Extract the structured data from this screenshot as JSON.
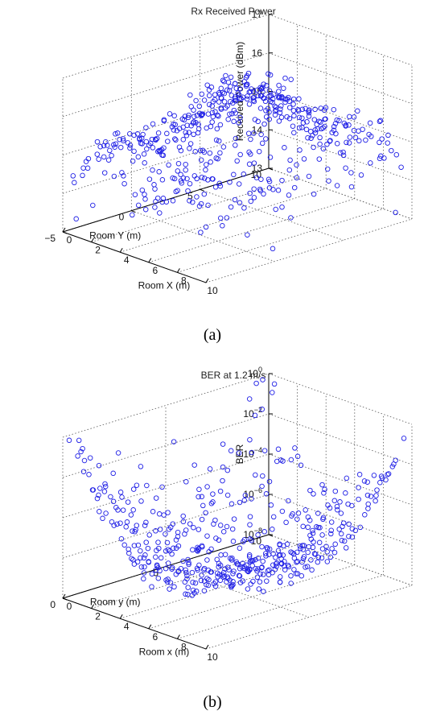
{
  "chart_data": [
    {
      "type": "scatter",
      "subtype": "3d-scatter",
      "panel_label": "(a)",
      "title": "Rx Received Power",
      "xlabel": "Room X (m)",
      "ylabel": "Room Y (m)",
      "zlabel": "Received Power (dBm)",
      "xlim": [
        0,
        10
      ],
      "ylim": [
        -5,
        10
      ],
      "zlim": [
        13,
        17
      ],
      "xticks": [
        "0",
        "2",
        "4",
        "6",
        "8",
        "10"
      ],
      "yticks": [
        "-5",
        "0",
        "5",
        "10"
      ],
      "zticks": [
        "13",
        "14",
        "15",
        "16",
        "17"
      ],
      "zscale": "linear",
      "grid": true,
      "marker": "circle",
      "color": "#1f1fe6",
      "points_note": "dense sampling over room floor; received power peaks near room centre"
    },
    {
      "type": "scatter",
      "subtype": "3d-scatter",
      "panel_label": "(b)",
      "title": "BER at 1.2 m/s",
      "xlabel": "Room x (m)",
      "ylabel": "Room y (m)",
      "zlabel": "BER",
      "xlim": [
        0,
        10
      ],
      "ylim": [
        0,
        10
      ],
      "zlim": [
        1e-08,
        1
      ],
      "xticks": [
        "0",
        "2",
        "4",
        "6",
        "8",
        "10"
      ],
      "yticks": [
        "0",
        "5",
        "10"
      ],
      "zticks": [
        "10^-8",
        "10^-6",
        "10^-4",
        "10^-2",
        "10^0"
      ],
      "zscale": "log",
      "grid": true,
      "marker": "circle",
      "color": "#1f1fe6",
      "points_note": "BER lowest in room centre, highest at corners"
    }
  ]
}
